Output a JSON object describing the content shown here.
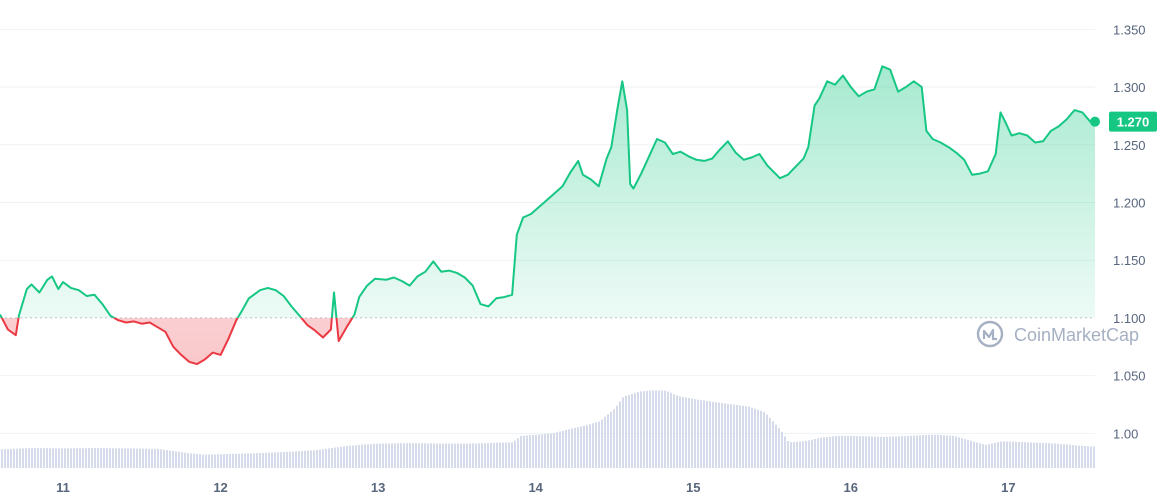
{
  "chart_data": {
    "type": "line",
    "title": "",
    "xlabel": "",
    "ylabel": "",
    "y_tick_labels": [
      "1.350",
      "1.300",
      "1.250",
      "1.200",
      "1.150",
      "1.100",
      "1.050",
      "1.00"
    ],
    "y_tick_values": [
      1.35,
      1.3,
      1.25,
      1.2,
      1.15,
      1.1,
      1.05,
      1.0
    ],
    "ylim": [
      0.97,
      1.365
    ],
    "x_tick_labels": [
      "11",
      "12",
      "13",
      "14",
      "15",
      "16",
      "17"
    ],
    "x_tick_values": [
      11,
      12,
      13,
      14,
      15,
      16,
      17
    ],
    "xlim": [
      10.6,
      17.55
    ],
    "reference_value": 1.1,
    "current_price_label": "1.270",
    "current_price": 1.27,
    "watermark": "CoinMarketCap",
    "colors": {
      "up": "#16c784",
      "down": "#ea3943",
      "volume": "#d5dbea",
      "grid": "#eff2f5",
      "reference": "#bfc6d1"
    },
    "series": [
      {
        "values": [
          [
            10.6,
            1.103
          ],
          [
            10.65,
            1.09
          ],
          [
            10.7,
            1.085
          ],
          [
            10.72,
            1.102
          ],
          [
            10.77,
            1.125
          ],
          [
            10.8,
            1.129
          ],
          [
            10.85,
            1.122
          ],
          [
            10.9,
            1.133
          ],
          [
            10.93,
            1.136
          ],
          [
            10.97,
            1.125
          ],
          [
            11.0,
            1.131
          ],
          [
            11.05,
            1.126
          ],
          [
            11.1,
            1.124
          ],
          [
            11.15,
            1.119
          ],
          [
            11.2,
            1.12
          ],
          [
            11.25,
            1.112
          ],
          [
            11.3,
            1.102
          ],
          [
            11.35,
            1.098
          ],
          [
            11.4,
            1.096
          ],
          [
            11.45,
            1.097
          ],
          [
            11.5,
            1.095
          ],
          [
            11.55,
            1.096
          ],
          [
            11.6,
            1.092
          ],
          [
            11.65,
            1.088
          ],
          [
            11.7,
            1.075
          ],
          [
            11.75,
            1.068
          ],
          [
            11.8,
            1.062
          ],
          [
            11.85,
            1.06
          ],
          [
            11.9,
            1.064
          ],
          [
            11.95,
            1.07
          ],
          [
            12.0,
            1.068
          ],
          [
            12.05,
            1.082
          ],
          [
            12.1,
            1.098
          ],
          [
            12.13,
            1.105
          ],
          [
            12.18,
            1.117
          ],
          [
            12.25,
            1.124
          ],
          [
            12.3,
            1.126
          ],
          [
            12.35,
            1.124
          ],
          [
            12.4,
            1.119
          ],
          [
            12.45,
            1.11
          ],
          [
            12.5,
            1.102
          ],
          [
            12.55,
            1.094
          ],
          [
            12.6,
            1.089
          ],
          [
            12.65,
            1.083
          ],
          [
            12.7,
            1.09
          ],
          [
            12.72,
            1.122
          ],
          [
            12.75,
            1.08
          ],
          [
            12.8,
            1.092
          ],
          [
            12.85,
            1.103
          ],
          [
            12.88,
            1.118
          ],
          [
            12.93,
            1.128
          ],
          [
            12.98,
            1.134
          ],
          [
            13.05,
            1.133
          ],
          [
            13.1,
            1.135
          ],
          [
            13.15,
            1.132
          ],
          [
            13.2,
            1.128
          ],
          [
            13.25,
            1.136
          ],
          [
            13.3,
            1.14
          ],
          [
            13.35,
            1.149
          ],
          [
            13.4,
            1.14
          ],
          [
            13.45,
            1.141
          ],
          [
            13.5,
            1.139
          ],
          [
            13.55,
            1.135
          ],
          [
            13.6,
            1.128
          ],
          [
            13.65,
            1.112
          ],
          [
            13.7,
            1.11
          ],
          [
            13.75,
            1.117
          ],
          [
            13.8,
            1.118
          ],
          [
            13.85,
            1.12
          ],
          [
            13.88,
            1.172
          ],
          [
            13.92,
            1.187
          ],
          [
            13.97,
            1.19
          ],
          [
            14.02,
            1.196
          ],
          [
            14.07,
            1.202
          ],
          [
            14.12,
            1.208
          ],
          [
            14.17,
            1.214
          ],
          [
            14.22,
            1.226
          ],
          [
            14.27,
            1.236
          ],
          [
            14.3,
            1.224
          ],
          [
            14.35,
            1.22
          ],
          [
            14.4,
            1.214
          ],
          [
            14.45,
            1.238
          ],
          [
            14.48,
            1.248
          ],
          [
            14.52,
            1.282
          ],
          [
            14.55,
            1.305
          ],
          [
            14.58,
            1.28
          ],
          [
            14.6,
            1.216
          ],
          [
            14.62,
            1.212
          ],
          [
            14.67,
            1.225
          ],
          [
            14.72,
            1.24
          ],
          [
            14.77,
            1.255
          ],
          [
            14.82,
            1.252
          ],
          [
            14.87,
            1.242
          ],
          [
            14.92,
            1.244
          ],
          [
            14.97,
            1.24
          ],
          [
            15.02,
            1.237
          ],
          [
            15.07,
            1.236
          ],
          [
            15.12,
            1.238
          ],
          [
            15.17,
            1.246
          ],
          [
            15.22,
            1.253
          ],
          [
            15.27,
            1.243
          ],
          [
            15.32,
            1.237
          ],
          [
            15.37,
            1.239
          ],
          [
            15.42,
            1.242
          ],
          [
            15.47,
            1.232
          ],
          [
            15.5,
            1.228
          ],
          [
            15.55,
            1.221
          ],
          [
            15.6,
            1.224
          ],
          [
            15.65,
            1.231
          ],
          [
            15.7,
            1.238
          ],
          [
            15.73,
            1.248
          ],
          [
            15.77,
            1.284
          ],
          [
            15.8,
            1.29
          ],
          [
            15.85,
            1.305
          ],
          [
            15.9,
            1.302
          ],
          [
            15.95,
            1.31
          ],
          [
            16.0,
            1.3
          ],
          [
            16.05,
            1.292
          ],
          [
            16.1,
            1.296
          ],
          [
            16.15,
            1.298
          ],
          [
            16.2,
            1.318
          ],
          [
            16.25,
            1.315
          ],
          [
            16.3,
            1.296
          ],
          [
            16.35,
            1.3
          ],
          [
            16.4,
            1.305
          ],
          [
            16.45,
            1.3
          ],
          [
            16.48,
            1.262
          ],
          [
            16.52,
            1.255
          ],
          [
            16.57,
            1.252
          ],
          [
            16.62,
            1.248
          ],
          [
            16.67,
            1.243
          ],
          [
            16.72,
            1.237
          ],
          [
            16.77,
            1.224
          ],
          [
            16.82,
            1.225
          ],
          [
            16.87,
            1.227
          ],
          [
            16.92,
            1.242
          ],
          [
            16.95,
            1.278
          ],
          [
            16.98,
            1.27
          ],
          [
            17.02,
            1.258
          ],
          [
            17.07,
            1.26
          ],
          [
            17.12,
            1.258
          ],
          [
            17.17,
            1.252
          ],
          [
            17.22,
            1.253
          ],
          [
            17.27,
            1.262
          ],
          [
            17.32,
            1.266
          ],
          [
            17.37,
            1.272
          ],
          [
            17.42,
            1.28
          ],
          [
            17.47,
            1.278
          ],
          [
            17.52,
            1.27
          ],
          [
            17.55,
            1.27
          ]
        ]
      }
    ],
    "volume": {
      "values": [
        [
          10.6,
          0.42
        ],
        [
          10.8,
          0.45
        ],
        [
          11.0,
          0.44
        ],
        [
          11.2,
          0.45
        ],
        [
          11.4,
          0.44
        ],
        [
          11.6,
          0.43
        ],
        [
          11.8,
          0.33
        ],
        [
          11.9,
          0.3
        ],
        [
          12.0,
          0.31
        ],
        [
          12.2,
          0.33
        ],
        [
          12.4,
          0.36
        ],
        [
          12.6,
          0.4
        ],
        [
          12.8,
          0.5
        ],
        [
          13.0,
          0.55
        ],
        [
          13.2,
          0.56
        ],
        [
          13.4,
          0.55
        ],
        [
          13.6,
          0.55
        ],
        [
          13.85,
          0.58
        ],
        [
          13.9,
          0.72
        ],
        [
          14.1,
          0.78
        ],
        [
          14.3,
          0.95
        ],
        [
          14.4,
          1.05
        ],
        [
          14.5,
          1.35
        ],
        [
          14.55,
          1.6
        ],
        [
          14.65,
          1.72
        ],
        [
          14.75,
          1.75
        ],
        [
          14.82,
          1.74
        ],
        [
          14.9,
          1.62
        ],
        [
          15.0,
          1.55
        ],
        [
          15.1,
          1.5
        ],
        [
          15.2,
          1.45
        ],
        [
          15.35,
          1.38
        ],
        [
          15.45,
          1.25
        ],
        [
          15.55,
          0.85
        ],
        [
          15.6,
          0.58
        ],
        [
          15.7,
          0.6
        ],
        [
          15.8,
          0.68
        ],
        [
          15.9,
          0.72
        ],
        [
          16.0,
          0.72
        ],
        [
          16.2,
          0.7
        ],
        [
          16.35,
          0.72
        ],
        [
          16.45,
          0.74
        ],
        [
          16.55,
          0.75
        ],
        [
          16.65,
          0.72
        ],
        [
          16.75,
          0.62
        ],
        [
          16.85,
          0.52
        ],
        [
          16.95,
          0.6
        ],
        [
          17.1,
          0.58
        ],
        [
          17.3,
          0.55
        ],
        [
          17.45,
          0.5
        ],
        [
          17.55,
          0.48
        ]
      ]
    }
  }
}
